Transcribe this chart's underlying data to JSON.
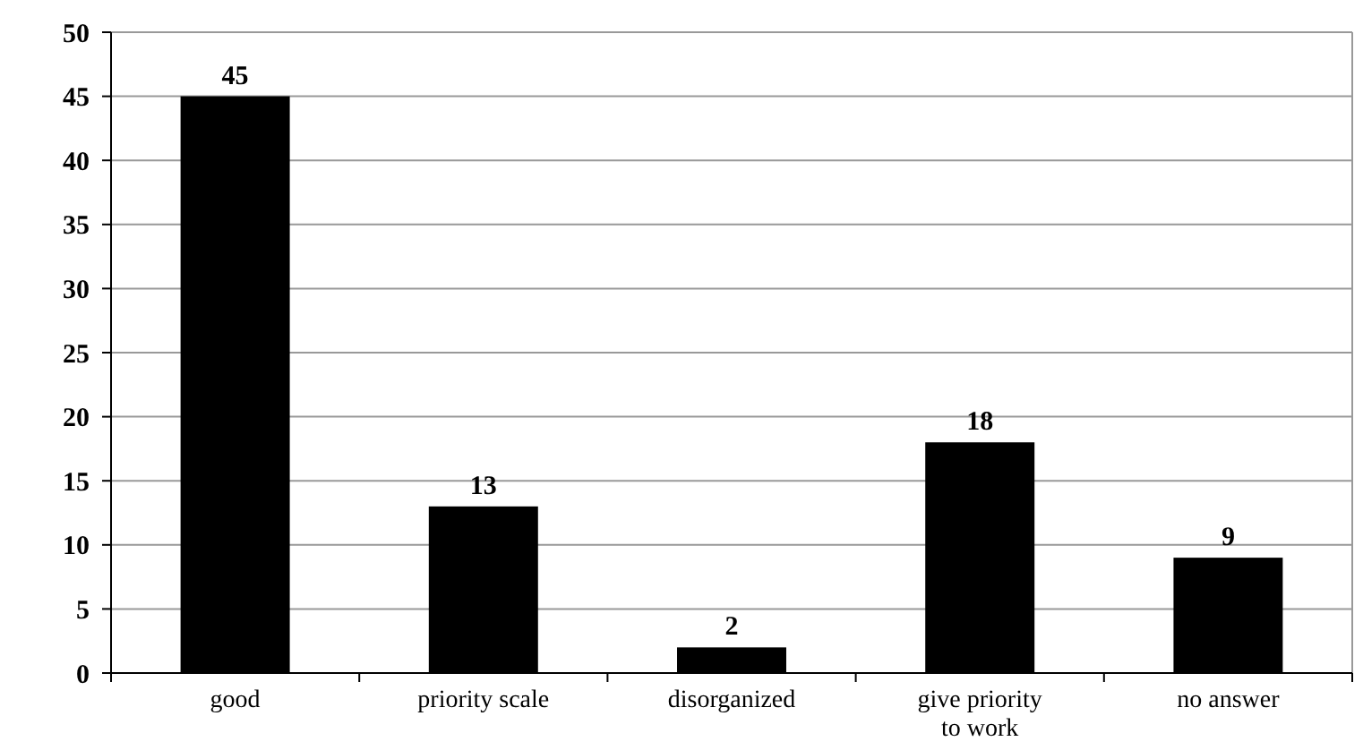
{
  "chart_data": {
    "type": "bar",
    "categories": [
      "good",
      "priority scale",
      "disorganized",
      "give priority to work",
      "no answer"
    ],
    "values": [
      45,
      13,
      2,
      18,
      9
    ],
    "color": "#000000",
    "ylim": [
      0,
      50
    ],
    "yticks": [
      0,
      5,
      10,
      15,
      20,
      25,
      30,
      35,
      40,
      45,
      50
    ],
    "grid": "y",
    "data_labels": true
  }
}
